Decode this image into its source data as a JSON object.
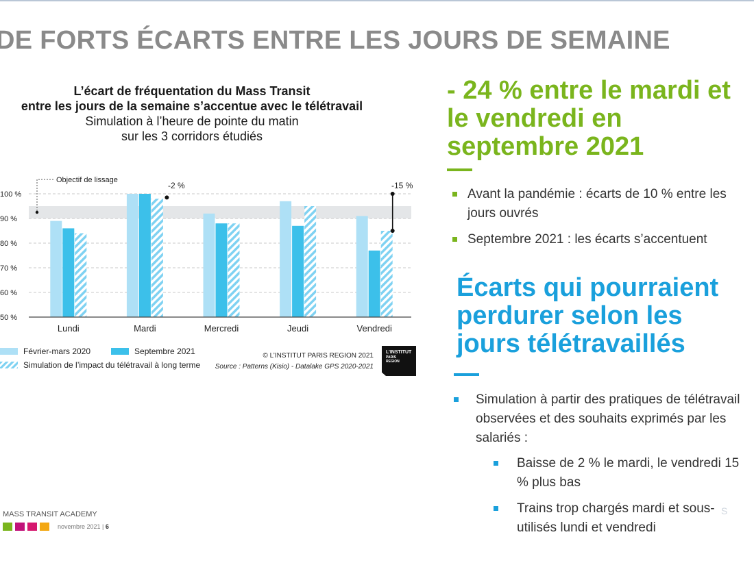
{
  "slide": {
    "title": "DE FORTS ÉCARTS ENTRE LES JOURS DE SEMAINE"
  },
  "chart_data": {
    "type": "bar",
    "title_line1": "L’écart de fréquentation du Mass Transit",
    "title_line2": "entre les jours de la semaine s’accentue avec le télétravail",
    "subtitle_line1": "Simulation à l’heure de pointe du matin",
    "subtitle_line2": "sur les 3 corridors étudiés",
    "categories": [
      "Lundi",
      "Mardi",
      "Mercredi",
      "Jeudi",
      "Vendredi"
    ],
    "series": [
      {
        "name": "Février-mars 2020",
        "color": "#aee0f6",
        "values": [
          89,
          100,
          92,
          97,
          91
        ]
      },
      {
        "name": "Septembre 2021",
        "color": "#3cc0ea",
        "values": [
          86,
          100,
          88,
          87,
          77
        ]
      },
      {
        "name": "Simulation de l’impact du télétravail à long terme",
        "color": "#7fd2f2",
        "pattern": "hatch",
        "values": [
          84,
          98,
          88,
          95,
          85
        ]
      }
    ],
    "ylim": [
      50,
      100
    ],
    "yticks": [
      "50 %",
      "60 %",
      "70 %",
      "80 %",
      "90 %",
      "100 %"
    ],
    "ytick_values": [
      50,
      60,
      70,
      80,
      90,
      100
    ],
    "grid": "dashed-horizontal",
    "band": {
      "label": "Objectif de lissage",
      "from": 90,
      "to": 95
    },
    "annotations": [
      {
        "category": "Mardi",
        "text": "-2 %"
      },
      {
        "category": "Vendredi",
        "text": "-15 %",
        "from": 100,
        "to": 85
      }
    ],
    "credit": "© L’INSTITUT PARIS REGION 2021",
    "source": "Source : Patterns (Kisio) - Datalake GPS 2020-2021",
    "logo": [
      "L’INSTITUT",
      "PARIS",
      "REGION"
    ]
  },
  "right": {
    "headline": "- 24 % entre le mardi et le vendredi en septembre 2021",
    "bullets1": [
      "Avant la pandémie : écarts de 10 % entre les jours ouvrés",
      "Septembre 2021 : les écarts s’accentuent"
    ],
    "headline2": "Écarts qui pourraient perdurer selon les jours télétravaillés",
    "bullet2": "Simulation à partir des pratiques de télétravail observées et des souhaits exprimés par les salariés :",
    "subbullets": [
      "Baisse de 2 % le mardi, le vendredi 15 % plus bas",
      "Trains trop chargés mardi et sous-utilisés lundi et vendredi"
    ]
  },
  "footer": {
    "brand": "MASS TRANSIT ACADEMY",
    "date": "novembre 2021",
    "page": "6",
    "square_colors": [
      "#7ab51d",
      "#c1127a",
      "#d6186f",
      "#f3a712"
    ]
  }
}
